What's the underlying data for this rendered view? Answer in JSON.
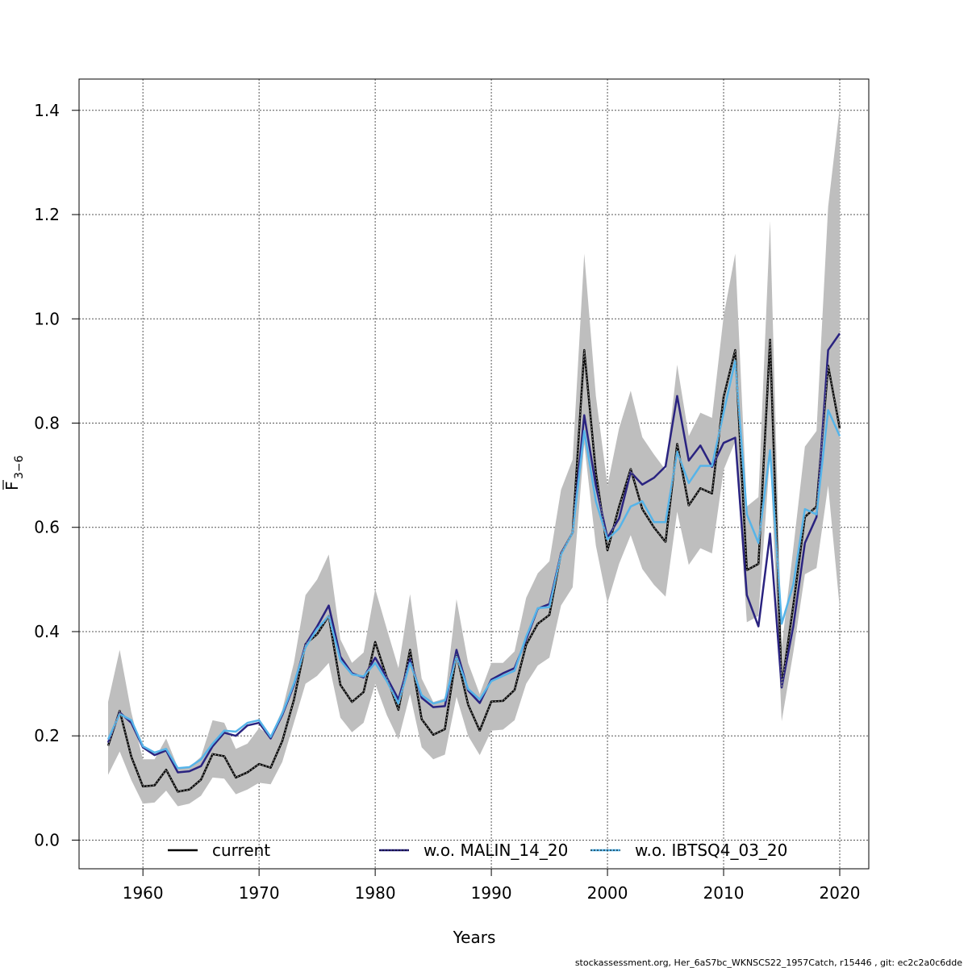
{
  "chart_data": {
    "type": "line",
    "xlabel": "Years",
    "ylabel_main": "F",
    "ylabel_sub": "3−6",
    "xlim": [
      1954.5,
      2022.5
    ],
    "ylim": [
      -0.055,
      1.46
    ],
    "x_ticks": [
      1960,
      1970,
      1980,
      1990,
      2000,
      2010,
      2020
    ],
    "y_ticks": [
      0.0,
      0.2,
      0.4,
      0.6,
      0.8,
      1.0,
      1.2,
      1.4
    ],
    "x_tick_labels": [
      "1960",
      "1970",
      "1980",
      "1990",
      "2000",
      "2010",
      "2020"
    ],
    "y_tick_labels": [
      "0.0",
      "0.2",
      "0.4",
      "0.6",
      "0.8",
      "1.0",
      "1.2",
      "1.4"
    ],
    "grid": true,
    "legend_position": "bottom",
    "footer": "stockassessment.org, Her_6aS7bc_WKNSCS22_1957Catch, r15446 , git: ec2c2a0c6dde",
    "x": [
      1957,
      1958,
      1959,
      1960,
      1961,
      1962,
      1963,
      1964,
      1965,
      1966,
      1967,
      1968,
      1969,
      1970,
      1971,
      1972,
      1973,
      1974,
      1975,
      1976,
      1977,
      1978,
      1979,
      1980,
      1981,
      1982,
      1983,
      1984,
      1985,
      1986,
      1987,
      1988,
      1989,
      1990,
      1991,
      1992,
      1993,
      1994,
      1995,
      1996,
      1997,
      1998,
      1999,
      2000,
      2001,
      2002,
      2003,
      2004,
      2005,
      2006,
      2007,
      2008,
      2009,
      2010,
      2011,
      2012,
      2013,
      2014,
      2015,
      2016,
      2017,
      2018,
      2019,
      2020
    ],
    "band": {
      "color": "#bebebe",
      "lower": [
        0.125,
        0.17,
        0.115,
        0.07,
        0.072,
        0.095,
        0.065,
        0.07,
        0.085,
        0.12,
        0.118,
        0.088,
        0.097,
        0.11,
        0.107,
        0.15,
        0.225,
        0.3,
        0.315,
        0.34,
        0.235,
        0.207,
        0.225,
        0.3,
        0.24,
        0.193,
        0.28,
        0.178,
        0.155,
        0.164,
        0.275,
        0.2,
        0.163,
        0.21,
        0.212,
        0.23,
        0.3,
        0.335,
        0.35,
        0.45,
        0.485,
        0.76,
        0.565,
        0.455,
        0.53,
        0.585,
        0.52,
        0.49,
        0.467,
        0.63,
        0.528,
        0.56,
        0.55,
        0.71,
        0.765,
        0.418,
        0.43,
        0.74,
        0.228,
        0.36,
        0.51,
        0.522,
        0.68,
        0.445
      ],
      "upper": [
        0.265,
        0.365,
        0.245,
        0.155,
        0.155,
        0.195,
        0.14,
        0.14,
        0.16,
        0.23,
        0.225,
        0.175,
        0.185,
        0.215,
        0.2,
        0.25,
        0.34,
        0.47,
        0.5,
        0.548,
        0.385,
        0.34,
        0.36,
        0.482,
        0.405,
        0.33,
        0.472,
        0.31,
        0.265,
        0.272,
        0.462,
        0.34,
        0.28,
        0.34,
        0.34,
        0.362,
        0.465,
        0.512,
        0.535,
        0.672,
        0.73,
        1.125,
        0.852,
        0.68,
        0.79,
        0.862,
        0.773,
        0.74,
        0.71,
        0.912,
        0.775,
        0.82,
        0.81,
        1.005,
        1.125,
        0.64,
        0.658,
        1.188,
        0.37,
        0.56,
        0.755,
        0.785,
        1.215,
        1.405
      ]
    },
    "series": [
      {
        "name": "current",
        "color": "#000000",
        "values": [
          0.181,
          0.248,
          0.16,
          0.103,
          0.105,
          0.135,
          0.093,
          0.097,
          0.116,
          0.165,
          0.161,
          0.12,
          0.13,
          0.146,
          0.139,
          0.19,
          0.269,
          0.376,
          0.395,
          0.43,
          0.298,
          0.265,
          0.284,
          0.38,
          0.312,
          0.25,
          0.365,
          0.232,
          0.202,
          0.213,
          0.357,
          0.26,
          0.21,
          0.266,
          0.267,
          0.288,
          0.375,
          0.415,
          0.432,
          0.55,
          0.59,
          0.94,
          0.705,
          0.556,
          0.64,
          0.712,
          0.635,
          0.6,
          0.572,
          0.76,
          0.642,
          0.675,
          0.665,
          0.85,
          0.94,
          0.518,
          0.53,
          0.96,
          0.293,
          0.45,
          0.62,
          0.64,
          0.91,
          0.79
        ]
      },
      {
        "name": "w.o. MALIN_14_20",
        "color": "#2a2380",
        "values": [
          0.187,
          0.245,
          0.225,
          0.178,
          0.163,
          0.172,
          0.13,
          0.132,
          0.142,
          0.18,
          0.206,
          0.2,
          0.22,
          0.225,
          0.195,
          0.24,
          0.297,
          0.375,
          0.41,
          0.45,
          0.352,
          0.32,
          0.312,
          0.35,
          0.312,
          0.27,
          0.347,
          0.273,
          0.255,
          0.257,
          0.365,
          0.287,
          0.263,
          0.308,
          0.32,
          0.33,
          0.385,
          0.444,
          0.453,
          0.55,
          0.59,
          0.815,
          0.68,
          0.58,
          0.617,
          0.706,
          0.682,
          0.695,
          0.717,
          0.852,
          0.728,
          0.757,
          0.716,
          0.762,
          0.772,
          0.47,
          0.41,
          0.588,
          0.293,
          0.41,
          0.57,
          0.62,
          0.94,
          0.972
        ]
      },
      {
        "name": "w.o. IBTSQ4_03_20",
        "color": "#56b4e9",
        "values": [
          0.193,
          0.242,
          0.23,
          0.18,
          0.168,
          0.175,
          0.138,
          0.14,
          0.155,
          0.185,
          0.21,
          0.208,
          0.225,
          0.23,
          0.198,
          0.243,
          0.3,
          0.37,
          0.405,
          0.43,
          0.345,
          0.318,
          0.314,
          0.34,
          0.305,
          0.262,
          0.34,
          0.278,
          0.262,
          0.268,
          0.352,
          0.29,
          0.27,
          0.305,
          0.315,
          0.325,
          0.39,
          0.445,
          0.447,
          0.548,
          0.59,
          0.785,
          0.65,
          0.577,
          0.598,
          0.64,
          0.65,
          0.61,
          0.61,
          0.745,
          0.685,
          0.718,
          0.718,
          0.82,
          0.92,
          0.625,
          0.57,
          0.748,
          0.415,
          0.49,
          0.635,
          0.625,
          0.825,
          0.775
        ]
      }
    ]
  }
}
